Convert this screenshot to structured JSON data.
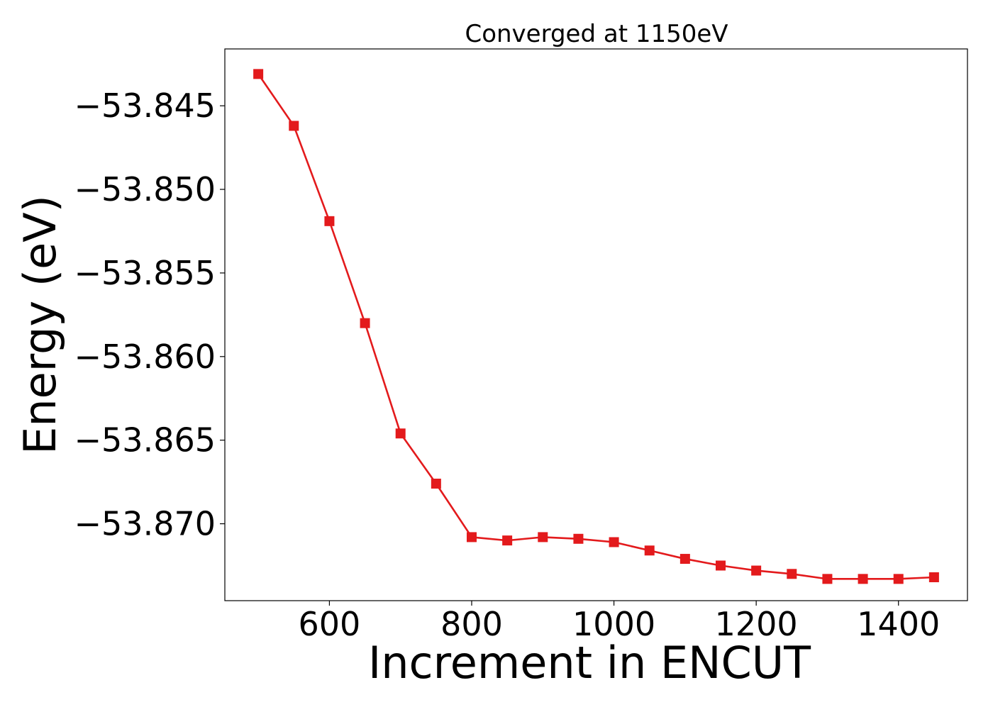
{
  "chart_data": {
    "type": "line",
    "title": "Converged at 1150eV",
    "xlabel": "Increment in ENCUT",
    "ylabel": "Energy (eV)",
    "x": [
      500,
      550,
      600,
      650,
      700,
      750,
      800,
      850,
      900,
      950,
      1000,
      1050,
      1100,
      1150,
      1200,
      1250,
      1300,
      1350,
      1400,
      1450
    ],
    "series": [
      {
        "name": "",
        "color": "#e31a1c",
        "marker": "square",
        "values": [
          -53.8431,
          -53.8462,
          -53.8519,
          -53.858,
          -53.8646,
          -53.8676,
          -53.8708,
          -53.871,
          -53.8708,
          -53.8709,
          -53.8711,
          -53.8716,
          -53.8721,
          -53.8725,
          -53.8728,
          -53.873,
          -53.8733,
          -53.8733,
          -53.8733,
          -53.8732
        ]
      }
    ],
    "xticks": [
      600,
      800,
      1000,
      1200,
      1400
    ],
    "xtick_labels": [
      "600",
      "800",
      "1000",
      "1200",
      "1400"
    ],
    "yticks": [
      -53.845,
      -53.85,
      -53.855,
      -53.86,
      -53.865,
      -53.87
    ],
    "ytick_labels": [
      "−53.845",
      "−53.850",
      "−53.855",
      "−53.860",
      "−53.865",
      "−53.870"
    ],
    "xlim": [
      453,
      1497
    ],
    "ylim": [
      -53.8746,
      -53.8416
    ],
    "grid": false,
    "legend": "none"
  }
}
